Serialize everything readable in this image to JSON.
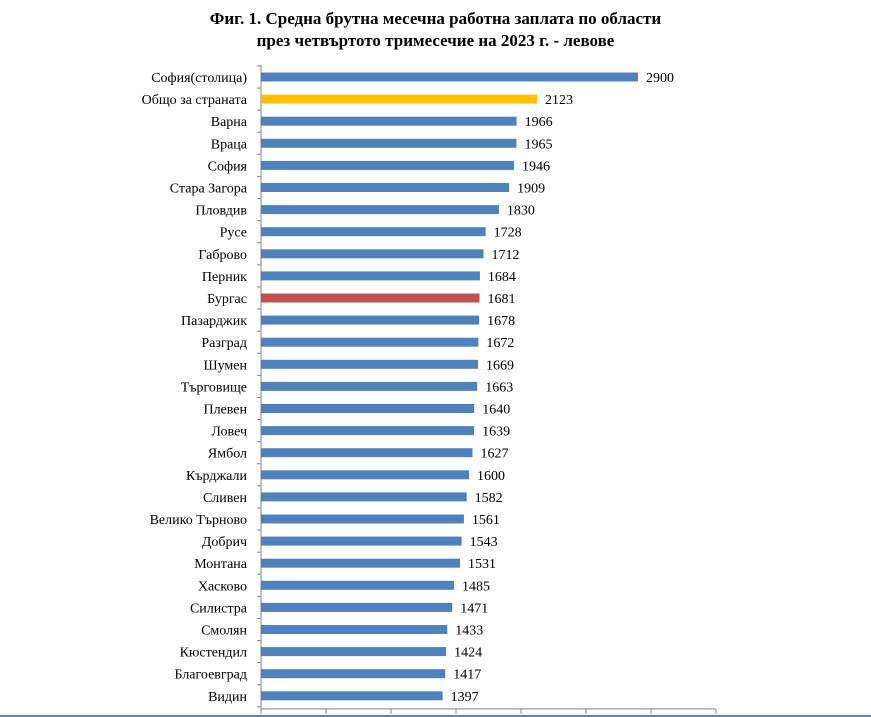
{
  "chart_data": {
    "type": "bar",
    "orientation": "horizontal",
    "title_line1": "Фиг. 1. Средна брутна месечна работна заплата по области",
    "title_line2": "през четвъртото тримесечие на 2023 г. - левове",
    "xlabel": "",
    "ylabel": "",
    "xlim": [
      0,
      3500
    ],
    "grid": false,
    "legend": "none",
    "categories": [
      "София(столица)",
      "Общо за страната",
      "Варна",
      "Враца",
      "София",
      "Стара Загора",
      "Пловдив",
      "Русе",
      "Габрово",
      "Перник",
      "Бургас",
      "Пазарджик",
      "Разград",
      "Шумен",
      "Търговище",
      "Плевен",
      "Ловеч",
      "Ямбол",
      "Кърджали",
      "Сливен",
      "Велико Търново",
      "Добрич",
      "Монтана",
      "Хасково",
      "Силистра",
      "Смолян",
      "Кюстендил",
      "Благоевград",
      "Видин"
    ],
    "values": [
      2900,
      2123,
      1966,
      1965,
      1946,
      1909,
      1830,
      1728,
      1712,
      1684,
      1681,
      1678,
      1672,
      1669,
      1663,
      1640,
      1639,
      1627,
      1600,
      1582,
      1561,
      1543,
      1531,
      1485,
      1471,
      1433,
      1424,
      1417,
      1397
    ],
    "colors": {
      "default": "#4f81bd",
      "Общо за страната": "#ffc000",
      "Бургас": "#c0504d"
    }
  }
}
